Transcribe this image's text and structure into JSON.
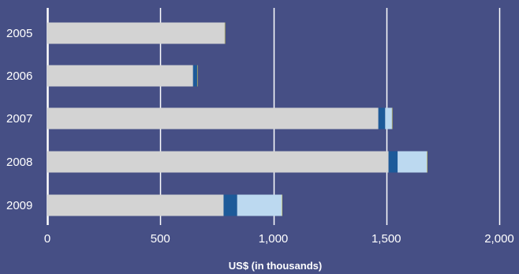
{
  "chart_data": {
    "type": "bar",
    "orientation": "horizontal",
    "stacked": true,
    "categories": [
      "2005",
      "2006",
      "2007",
      "2008",
      "2009"
    ],
    "series": [
      {
        "color": "#d3d3d3",
        "values": [
          785,
          645,
          1465,
          1510,
          780
        ]
      },
      {
        "color": "#1d5a99",
        "values": [
          0,
          18,
          30,
          40,
          60
        ]
      },
      {
        "color": "#bcd9f0",
        "values": [
          0,
          0,
          30,
          130,
          198
        ]
      },
      {
        "color": "#d9d45a",
        "values": [
          2,
          2,
          2,
          2,
          2
        ]
      }
    ],
    "xlabel": "US$ (in thousands)",
    "xlim": [
      0,
      2000
    ],
    "xticks": [
      0,
      500,
      1000,
      1500,
      2000
    ],
    "xtick_labels": [
      "0",
      "500",
      "1,000",
      "1,500",
      "2,000"
    ],
    "grid": "vertical",
    "legend": "none"
  },
  "style": {
    "background": "#464f85",
    "grid_color": "#ffffff",
    "text_color": "#ffffff"
  }
}
